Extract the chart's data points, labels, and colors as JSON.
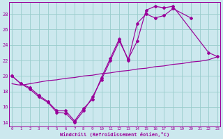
{
  "xlabel": "Windchill (Refroidissement éolien,°C)",
  "bg_color": "#cce8ee",
  "line_color": "#990099",
  "grid_color": "#99cccc",
  "xlim": [
    -0.3,
    23.3
  ],
  "ylim": [
    13.5,
    29.5
  ],
  "yticks": [
    14,
    16,
    18,
    20,
    22,
    24,
    26,
    28
  ],
  "xticks": [
    0,
    1,
    2,
    3,
    4,
    5,
    6,
    7,
    8,
    9,
    10,
    11,
    12,
    13,
    14,
    15,
    16,
    17,
    18,
    19,
    20,
    21,
    22,
    23
  ],
  "line1_x": [
    0,
    1,
    2,
    3,
    4,
    5,
    6,
    7,
    8,
    9,
    10,
    11,
    12,
    13,
    14,
    15,
    16,
    17,
    18,
    22,
    23
  ],
  "line1_y": [
    20.0,
    19.0,
    18.3,
    17.3,
    16.6,
    15.3,
    15.2,
    14.0,
    15.5,
    17.3,
    19.5,
    22.0,
    24.5,
    22.2,
    24.5,
    28.5,
    29.0,
    28.8,
    29.0,
    23.0,
    22.5
  ],
  "line2_x": [
    0,
    1,
    2,
    3,
    4,
    5,
    6,
    7,
    8,
    9,
    10,
    11,
    12,
    13,
    14,
    15,
    16,
    17,
    18,
    20
  ],
  "line2_y": [
    20.0,
    19.0,
    18.5,
    17.5,
    16.7,
    15.5,
    15.5,
    14.2,
    15.8,
    17.0,
    19.8,
    22.3,
    24.8,
    22.0,
    26.8,
    28.0,
    27.5,
    27.8,
    28.7,
    27.5
  ],
  "line3_x": [
    0,
    1,
    2,
    3,
    4,
    5,
    6,
    7,
    8,
    9,
    10,
    11,
    12,
    13,
    14,
    15,
    16,
    17,
    18,
    19,
    20,
    21,
    22,
    23
  ],
  "line3_y": [
    19.0,
    18.8,
    19.0,
    19.2,
    19.4,
    19.5,
    19.7,
    19.8,
    20.0,
    20.1,
    20.3,
    20.4,
    20.6,
    20.7,
    20.9,
    21.0,
    21.2,
    21.3,
    21.5,
    21.6,
    21.8,
    21.9,
    22.1,
    22.5
  ]
}
